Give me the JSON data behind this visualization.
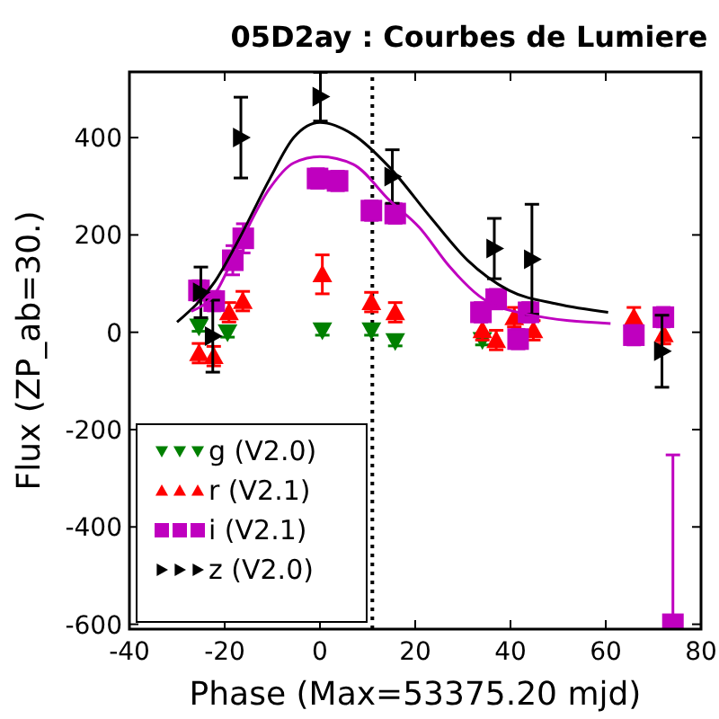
{
  "chart_data": {
    "type": "scatter",
    "title": "05D2ay : Courbes de Lumiere",
    "xlabel": "Phase (Max=53375.20 mjd)",
    "ylabel": "Flux (ZP_ab=30.)",
    "xlim": [
      -40,
      80
    ],
    "ylim": [
      -610,
      535
    ],
    "xticks": [
      -40,
      -20,
      0,
      20,
      40,
      60,
      80
    ],
    "yticks": [
      -600,
      -400,
      -200,
      0,
      200,
      400
    ],
    "legend": "bottom left",
    "grid": false,
    "ref_lines": [
      {
        "axis": "x",
        "value": 11,
        "line_style": "dotted",
        "color": "#000000"
      }
    ],
    "series": [
      {
        "name": "g (V2.0)",
        "color": "#008000",
        "marker": "triangle-down",
        "x": [
          -25.4,
          -19.4,
          0.5,
          10.8,
          15.8,
          34.1
        ],
        "values": [
          12,
          0,
          4,
          4,
          -18,
          -16
        ],
        "errors": [
          10,
          10,
          10,
          10,
          10,
          10
        ]
      },
      {
        "name": "r (V2.1)",
        "color": "#ff0000",
        "marker": "triangle",
        "x": [
          -25.4,
          -22.3,
          -19.1,
          -16.2,
          0.5,
          10.8,
          15.8,
          34.1,
          37,
          40.8,
          44.8,
          65.9,
          72.2
        ],
        "values": [
          -43,
          -49,
          41,
          64,
          119,
          62,
          41,
          4,
          -16,
          31,
          4,
          31,
          -4
        ],
        "errors": [
          20,
          20,
          20,
          20,
          40,
          20,
          20,
          20,
          20,
          20,
          20,
          20,
          20
        ]
      },
      {
        "name": "i (V2.1)",
        "color": "#bf00bf",
        "marker": "square",
        "x": [
          -25.4,
          -22.2,
          -18.3,
          -16.1,
          -0.5,
          3.7,
          10.8,
          15.8,
          33.8,
          37,
          41.6,
          43.8,
          65.9,
          72.1,
          74.1
        ],
        "values": [
          86,
          64,
          148,
          193,
          316,
          311,
          250,
          244,
          41,
          68,
          -14,
          41,
          -6,
          31,
          -600
        ],
        "errors": [
          20,
          20,
          30,
          30,
          20,
          20,
          20,
          20,
          20,
          20,
          20,
          20,
          20,
          20,
          [
            -600,
            -252
          ]
        ]
      },
      {
        "name": "z (V2.0)",
        "color": "#000000",
        "marker": "triangle-right",
        "x": [
          -25,
          -22.5,
          -16.6,
          0.1,
          15.2,
          36.6,
          44.5,
          71.8
        ],
        "values": [
          82,
          -8,
          400,
          484,
          320,
          172,
          150,
          -39
        ],
        "errors": [
          52,
          74,
          83,
          50,
          55,
          62,
          113,
          74
        ]
      },
      {
        "type": "line",
        "color": "#000000",
        "marker": "none",
        "x": [
          -30,
          -22,
          -17,
          -10.6,
          -5.5,
          0,
          7,
          14.6,
          23.4,
          31,
          39.7,
          49.8,
          60.5
        ],
        "values": [
          21,
          105,
          191,
          314,
          400,
          431,
          406,
          339,
          234,
          148,
          86,
          58,
          41
        ]
      },
      {
        "type": "line",
        "color": "#bf00bf",
        "marker": "none",
        "x": [
          -27,
          -22,
          -17,
          -10.6,
          -5.5,
          0,
          7,
          14.6,
          20.9,
          27.2,
          33.5,
          43.5,
          61
        ],
        "values": [
          43,
          80,
          178,
          295,
          348,
          361,
          345,
          271,
          215,
          135,
          74,
          37,
          18
        ]
      }
    ]
  }
}
